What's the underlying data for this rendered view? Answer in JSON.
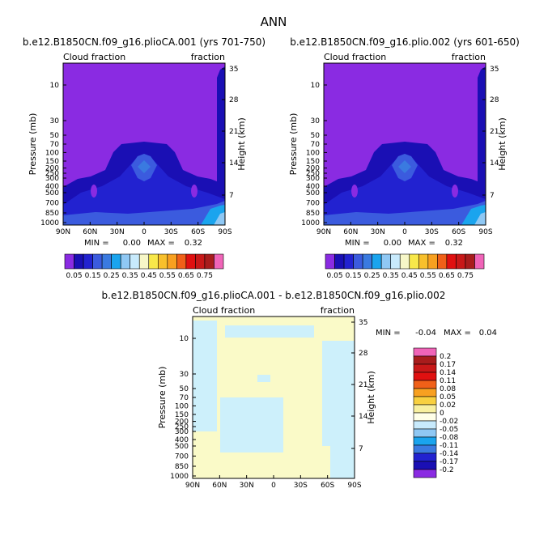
{
  "page_title": "ANN",
  "chart_data": [
    {
      "type": "heatmap",
      "title": "b.e12.B1850CN.f09_g16.plioCA.001 (yrs 701-750)",
      "left_label": "Cloud fraction",
      "right_label": "fraction",
      "ylabel": "Pressure (mb)",
      "ylabel_right": "Height (km)",
      "x_ticks": [
        "90N",
        "60N",
        "30N",
        "0",
        "30S",
        "60S",
        "90S"
      ],
      "y_ticks": [
        "10",
        "30",
        "50",
        "70",
        "100",
        "150",
        "200",
        "250",
        "300",
        "400",
        "500",
        "700",
        "850",
        "1000"
      ],
      "height_ticks": [
        "35",
        "28",
        "21",
        "14",
        "7"
      ],
      "min_label": "MIN =",
      "min_value": "0.00",
      "max_label": "MAX =",
      "max_value": "0.32",
      "colorbar_labels": [
        "0.05",
        "0.15",
        "0.25",
        "0.35",
        "0.45",
        "0.55",
        "0.65",
        "0.75"
      ],
      "colorbar_colors": [
        "#8a2be2",
        "#1a0fb4",
        "#2222d0",
        "#3b5bde",
        "#3a7ae0",
        "#1aa4ee",
        "#8fc8f4",
        "#c8eafc",
        "#f7f7c8",
        "#f8e84a",
        "#f8c02c",
        "#f8a020",
        "#f06018",
        "#e01010",
        "#c81818",
        "#a81c1c",
        "#f064b8"
      ],
      "field_color": "#8a2be2"
    },
    {
      "type": "heatmap",
      "title": "b.e12.B1850CN.f09_g16.plio.002 (yrs 601-650)",
      "left_label": "Cloud fraction",
      "right_label": "fraction",
      "ylabel": "Pressure (mb)",
      "ylabel_right": "Height (km)",
      "x_ticks": [
        "90N",
        "60N",
        "30N",
        "0",
        "30S",
        "60S",
        "90S"
      ],
      "y_ticks": [
        "10",
        "30",
        "50",
        "70",
        "100",
        "150",
        "200",
        "250",
        "300",
        "400",
        "500",
        "700",
        "850",
        "1000"
      ],
      "height_ticks": [
        "35",
        "28",
        "21",
        "14",
        "7"
      ],
      "min_label": "MIN =",
      "min_value": "0.00",
      "max_label": "MAX =",
      "max_value": "0.32",
      "colorbar_labels": [
        "0.05",
        "0.15",
        "0.25",
        "0.35",
        "0.45",
        "0.55",
        "0.65",
        "0.75"
      ],
      "colorbar_colors": [
        "#8a2be2",
        "#1a0fb4",
        "#2222d0",
        "#3b5bde",
        "#3a7ae0",
        "#1aa4ee",
        "#8fc8f4",
        "#c8eafc",
        "#f7f7c8",
        "#f8e84a",
        "#f8c02c",
        "#f8a020",
        "#f06018",
        "#e01010",
        "#c81818",
        "#a81c1c",
        "#f064b8"
      ],
      "field_color": "#8a2be2"
    },
    {
      "type": "heatmap",
      "title": "b.e12.B1850CN.f09_g16.plioCA.001 - b.e12.B1850CN.f09_g16.plio.002",
      "left_label": "Cloud fraction",
      "right_label": "fraction",
      "ylabel": "Pressure (mb)",
      "ylabel_right": "Height (km)",
      "x_ticks": [
        "90N",
        "60N",
        "30N",
        "0",
        "30S",
        "60S",
        "90S"
      ],
      "y_ticks": [
        "10",
        "30",
        "50",
        "70",
        "100",
        "150",
        "200",
        "250",
        "300",
        "400",
        "500",
        "700",
        "850",
        "1000"
      ],
      "height_ticks": [
        "35",
        "28",
        "21",
        "14",
        "7"
      ],
      "min_label": "MIN =",
      "min_value": "-0.04",
      "max_label": "MAX =",
      "max_value": "0.04",
      "colorbar_labels": [
        "0.2",
        "0.17",
        "0.14",
        "0.11",
        "0.08",
        "0.05",
        "0.02",
        "0",
        "-0.02",
        "-0.05",
        "-0.08",
        "-0.11",
        "-0.14",
        "-0.17",
        "-0.2"
      ],
      "colorbar_colors": [
        "#f064b8",
        "#a81c1c",
        "#c81818",
        "#e01010",
        "#f06018",
        "#f8a020",
        "#f8d040",
        "#f8f0a0",
        "#ffffe8",
        "#c8eafc",
        "#8fc8f4",
        "#1aa4ee",
        "#3a7ae0",
        "#2222d0",
        "#1a0fb4",
        "#8a2be2"
      ],
      "field_colors": {
        "positive": "#fafac8",
        "negative": "#cdf0fb"
      }
    }
  ]
}
